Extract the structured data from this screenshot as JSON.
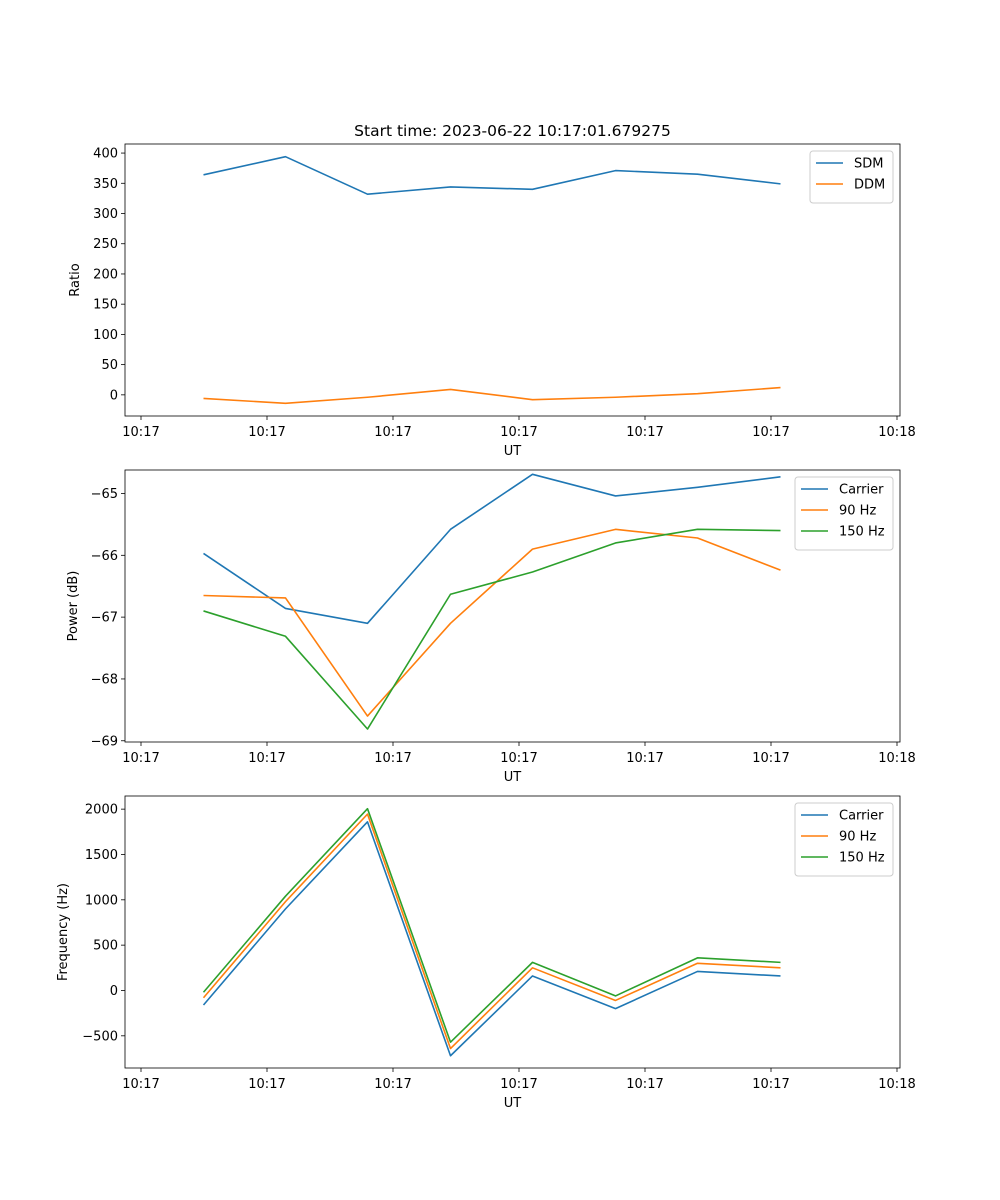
{
  "title": "Start time: 2023-06-22 10:17:01.679275",
  "colors": {
    "c0": "#1f77b4",
    "c1": "#ff7f0e",
    "c2": "#2ca02c"
  },
  "chart_data": [
    {
      "type": "line",
      "xlabel": "UT",
      "ylabel": "Ratio",
      "ylim": [
        -35,
        415
      ],
      "yticks": [
        0,
        50,
        100,
        150,
        200,
        250,
        300,
        350,
        400
      ],
      "xtick_labels": [
        "10:17",
        "10:17",
        "10:17",
        "10:17",
        "10:17",
        "10:17",
        "10:17",
        "10:18"
      ],
      "legend_position": "upper right",
      "series": [
        {
          "name": "SDM",
          "color": "#1f77b4",
          "values": [
            364,
            394,
            332,
            344,
            340,
            371,
            365,
            349
          ]
        },
        {
          "name": "DDM",
          "color": "#ff7f0e",
          "values": [
            -6,
            -14,
            -4,
            9,
            -8,
            -4,
            2,
            12
          ]
        }
      ]
    },
    {
      "type": "line",
      "xlabel": "UT",
      "ylabel": "Power (dB)",
      "ylim": [
        -69.02,
        -64.62
      ],
      "yticks": [
        -69,
        -68,
        -67,
        -66,
        -65
      ],
      "xtick_labels": [
        "10:17",
        "10:17",
        "10:17",
        "10:17",
        "10:17",
        "10:17",
        "10:17",
        "10:18"
      ],
      "legend_position": "upper right",
      "series": [
        {
          "name": "Carrier",
          "color": "#1f77b4",
          "values": [
            -65.97,
            -66.86,
            -67.1,
            -65.58,
            -64.69,
            -65.04,
            -64.9,
            -64.73
          ]
        },
        {
          "name": "90 Hz",
          "color": "#ff7f0e",
          "values": [
            -66.65,
            -66.69,
            -68.6,
            -67.1,
            -65.9,
            -65.58,
            -65.72,
            -66.24
          ]
        },
        {
          "name": "150 Hz",
          "color": "#2ca02c",
          "values": [
            -66.9,
            -67.31,
            -68.81,
            -66.63,
            -66.27,
            -65.8,
            -65.58,
            -65.6
          ]
        }
      ]
    },
    {
      "type": "line",
      "xlabel": "UT",
      "ylabel": "Frequency (Hz)",
      "ylim": [
        -855,
        2145
      ],
      "yticks": [
        -500,
        0,
        500,
        1000,
        1500,
        2000
      ],
      "xtick_labels": [
        "10:17",
        "10:17",
        "10:17",
        "10:17",
        "10:17",
        "10:17",
        "10:17",
        "10:18"
      ],
      "legend_position": "upper right",
      "series": [
        {
          "name": "Carrier",
          "color": "#1f77b4",
          "values": [
            -160,
            900,
            1860,
            -720,
            160,
            -200,
            210,
            160
          ]
        },
        {
          "name": "90 Hz",
          "color": "#ff7f0e",
          "values": [
            -80,
            980,
            1945,
            -640,
            250,
            -110,
            300,
            250
          ]
        },
        {
          "name": "150 Hz",
          "color": "#2ca02c",
          "values": [
            -20,
            1040,
            2005,
            -570,
            310,
            -60,
            360,
            310
          ]
        }
      ]
    }
  ]
}
